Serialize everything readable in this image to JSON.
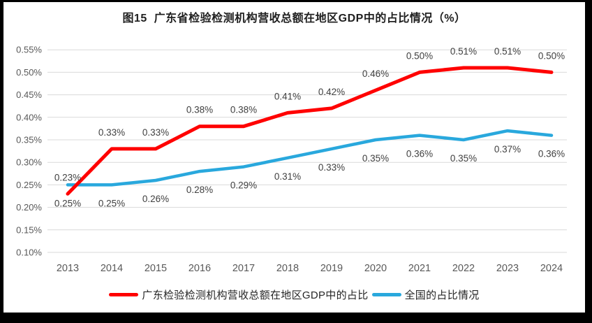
{
  "title": "图15  广东省检验检测机构营收总额在地区GDP中的占比情况（%）",
  "chart_data": {
    "type": "line",
    "categories": [
      "2013",
      "2014",
      "2015",
      "2016",
      "2017",
      "2018",
      "2019",
      "2020",
      "2021",
      "2022",
      "2023",
      "2024"
    ],
    "series": [
      {
        "key": "guangdong",
        "name": "广东检验检测机构营收总额在地区GDP中的占比",
        "color": "#FF0000",
        "stroke_width": 5,
        "label_position": "above",
        "values": [
          0.23,
          0.33,
          0.33,
          0.38,
          0.38,
          0.41,
          0.42,
          0.46,
          0.5,
          0.51,
          0.51,
          0.5
        ],
        "point_labels": [
          "0.23%",
          "0.33%",
          "0.33%",
          "0.38%",
          "0.38%",
          "0.41%",
          "0.42%",
          "0.46%",
          "0.50%",
          "0.51%",
          "0.51%",
          "0.50%"
        ]
      },
      {
        "key": "national",
        "name": "全国的占比情况",
        "color": "#29A8DD",
        "stroke_width": 4.5,
        "label_position": "below",
        "values": [
          0.25,
          0.25,
          0.26,
          0.28,
          0.29,
          0.31,
          0.33,
          0.35,
          0.36,
          0.35,
          0.37,
          0.36
        ],
        "point_labels": [
          "0.25%",
          "0.25%",
          "0.26%",
          "0.28%",
          "0.29%",
          "0.31%",
          "0.33%",
          "0.35%",
          "0.36%",
          "0.35%",
          "0.37%",
          "0.36%"
        ]
      }
    ],
    "y_axis": {
      "tick_labels": [
        "0.55%",
        "0.50%",
        "0.45%",
        "0.40%",
        "0.35%",
        "0.30%",
        "0.25%",
        "0.20%",
        "0.15%",
        "0.10%"
      ],
      "min": 0.1,
      "max": 0.55,
      "step": 0.05
    },
    "xlabel": "",
    "ylabel": "",
    "grid": true,
    "legend_position": "bottom"
  },
  "colors": {
    "background": "#FFFFFF",
    "frame": "#000000",
    "gridline": "#D9D9D9",
    "axis_text": "#595959",
    "data_label_text": "#404040",
    "title_text": "#1F1F1F",
    "legend_text": "#262626"
  }
}
